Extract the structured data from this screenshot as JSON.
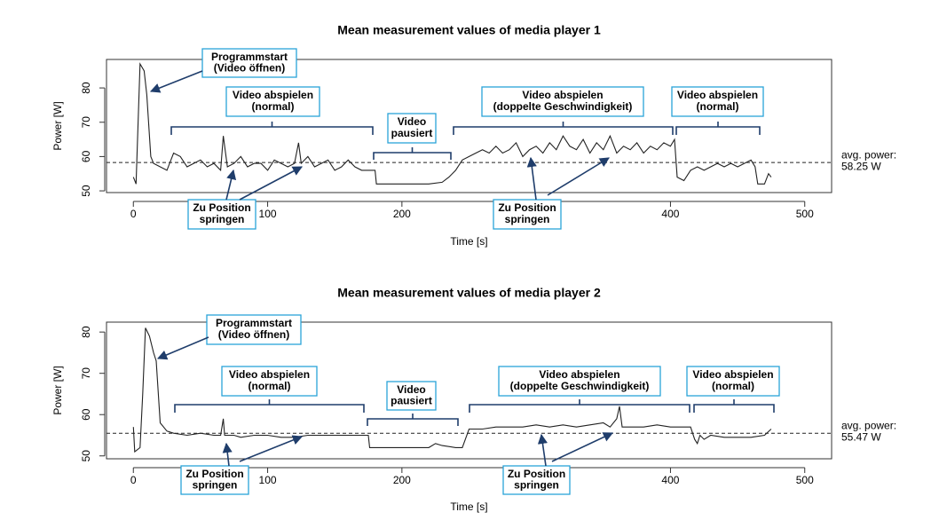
{
  "chart_data": [
    {
      "type": "line",
      "title": "Mean measurement values of media player 1",
      "xlabel": "Time [s]",
      "ylabel": "Power [W]",
      "xlim": [
        -20,
        520
      ],
      "ylim": [
        49.5,
        88.3
      ],
      "xticks": [
        0,
        100,
        200,
        300,
        400,
        500
      ],
      "yticks": [
        50,
        60,
        70,
        80
      ],
      "color": "#222222",
      "x": [
        0,
        2,
        5,
        8,
        10,
        13,
        15,
        20,
        25,
        30,
        35,
        40,
        45,
        50,
        55,
        60,
        65,
        67,
        70,
        75,
        80,
        85,
        90,
        95,
        100,
        105,
        110,
        115,
        120,
        123,
        125,
        130,
        135,
        140,
        145,
        150,
        155,
        160,
        165,
        170,
        175,
        180,
        181,
        190,
        200,
        210,
        220,
        230,
        235,
        240,
        245,
        250,
        255,
        260,
        265,
        270,
        275,
        280,
        285,
        290,
        295,
        300,
        305,
        310,
        315,
        320,
        325,
        330,
        335,
        340,
        345,
        350,
        355,
        360,
        365,
        370,
        375,
        380,
        385,
        390,
        395,
        400,
        403,
        405,
        410,
        415,
        420,
        425,
        430,
        435,
        440,
        445,
        450,
        455,
        460,
        463,
        465,
        470,
        473,
        475
      ],
      "values": [
        54,
        52,
        87,
        85,
        78,
        60,
        58,
        57,
        56,
        61,
        60,
        57,
        58,
        59,
        57,
        58,
        56,
        66,
        57,
        58,
        60,
        57,
        58,
        58,
        56,
        59,
        58,
        57,
        58,
        64,
        58,
        60,
        57,
        58,
        59,
        56,
        57,
        59,
        57,
        56,
        56,
        56,
        52,
        52,
        52,
        52,
        52,
        52.5,
        54,
        56,
        59,
        60,
        61,
        62,
        61,
        63,
        61,
        62,
        64,
        60,
        62,
        63,
        61,
        64,
        62,
        66,
        63,
        62,
        65,
        61,
        64,
        62,
        66,
        61,
        63,
        62,
        64,
        61,
        63,
        62,
        64,
        63,
        65,
        54,
        53,
        56,
        57,
        56,
        57,
        58,
        57,
        58,
        57,
        58,
        59,
        57,
        52,
        52,
        55,
        54
      ],
      "reference_line": {
        "value": 58.25,
        "label": "avg. power:",
        "value_label": "58.25 W"
      },
      "annotations": [
        [
          "Programmstart",
          "(Video öffnen)"
        ],
        [
          "Video abspielen",
          "(normal)"
        ],
        [
          "Video",
          "pausiert"
        ],
        [
          "Video abspielen",
          "(doppelte Geschwindigkeit)"
        ],
        [
          "Video abspielen",
          "(normal)"
        ],
        [
          "Zu Position",
          "springen"
        ],
        [
          "Zu Position",
          "springen"
        ]
      ]
    },
    {
      "type": "line",
      "title": "Mean measurement values of media player 2",
      "xlabel": "Time [s]",
      "ylabel": "Power [W]",
      "xlim": [
        -20,
        520
      ],
      "ylim": [
        49.3,
        82.4
      ],
      "xticks": [
        0,
        100,
        200,
        300,
        400,
        500
      ],
      "yticks": [
        50,
        60,
        70,
        80
      ],
      "color": "#222222",
      "x": [
        0,
        1,
        5,
        7,
        9,
        12,
        15,
        17,
        20,
        25,
        30,
        40,
        50,
        60,
        65,
        67,
        68,
        75,
        80,
        90,
        100,
        110,
        120,
        130,
        140,
        150,
        160,
        170,
        175,
        176,
        190,
        200,
        210,
        220,
        225,
        230,
        240,
        245,
        250,
        260,
        270,
        280,
        290,
        300,
        310,
        320,
        330,
        340,
        350,
        355,
        360,
        362,
        364,
        370,
        380,
        390,
        400,
        410,
        415,
        418,
        420,
        422,
        425,
        430,
        440,
        450,
        460,
        470,
        475
      ],
      "values": [
        57,
        51,
        52,
        65,
        81,
        79,
        75,
        73,
        58,
        56,
        55.5,
        55,
        55.5,
        55,
        55,
        59,
        55,
        55,
        54.5,
        55,
        55,
        54.5,
        54.5,
        55,
        55,
        55,
        55,
        55,
        55,
        52,
        52,
        52,
        52,
        52,
        53,
        52.5,
        52,
        52,
        56.5,
        56.5,
        57,
        57,
        57,
        57.5,
        57,
        57.5,
        57,
        57.5,
        58,
        57,
        59,
        62,
        57,
        57,
        57,
        57.5,
        57,
        57,
        57,
        54,
        53,
        55,
        54,
        55,
        54.5,
        54.5,
        54.5,
        55,
        56.5
      ],
      "reference_line": {
        "value": 55.47,
        "label": "avg. power:",
        "value_label": "55.47 W"
      },
      "annotations": [
        [
          "Programmstart",
          "(Video öffnen)"
        ],
        [
          "Video abspielen",
          "(normal)"
        ],
        [
          "Video",
          "pausiert"
        ],
        [
          "Video abspielen",
          "(doppelte Geschwindigkeit)"
        ],
        [
          "Video abspielen",
          "(normal)"
        ],
        [
          "Zu Position",
          "springen"
        ],
        [
          "Zu Position",
          "springen"
        ]
      ]
    }
  ]
}
